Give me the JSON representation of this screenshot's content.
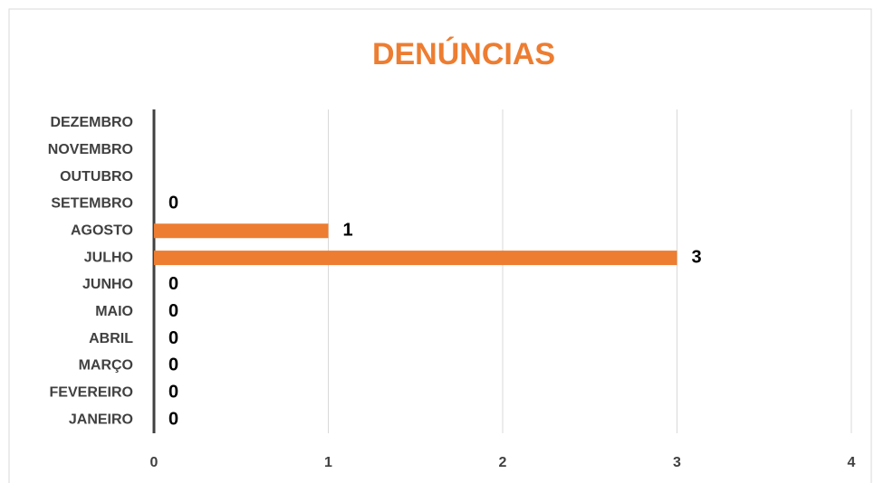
{
  "chart_data": {
    "type": "barh",
    "title": "DENÚNCIAS",
    "categories": [
      "JANEIRO",
      "FEVEREIRO",
      "MARÇO",
      "ABRIL",
      "MAIO",
      "JUNHO",
      "JULHO",
      "AGOSTO",
      "SETEMBRO",
      "OUTUBRO",
      "NOVEMBRO",
      "DEZEMBRO"
    ],
    "values": [
      0,
      0,
      0,
      0,
      0,
      0,
      3,
      1,
      0,
      null,
      null,
      null
    ],
    "color": "#ed7d31",
    "xlim": [
      0,
      4
    ],
    "xticks": [
      0,
      1,
      2,
      3,
      4
    ],
    "grid": true
  }
}
